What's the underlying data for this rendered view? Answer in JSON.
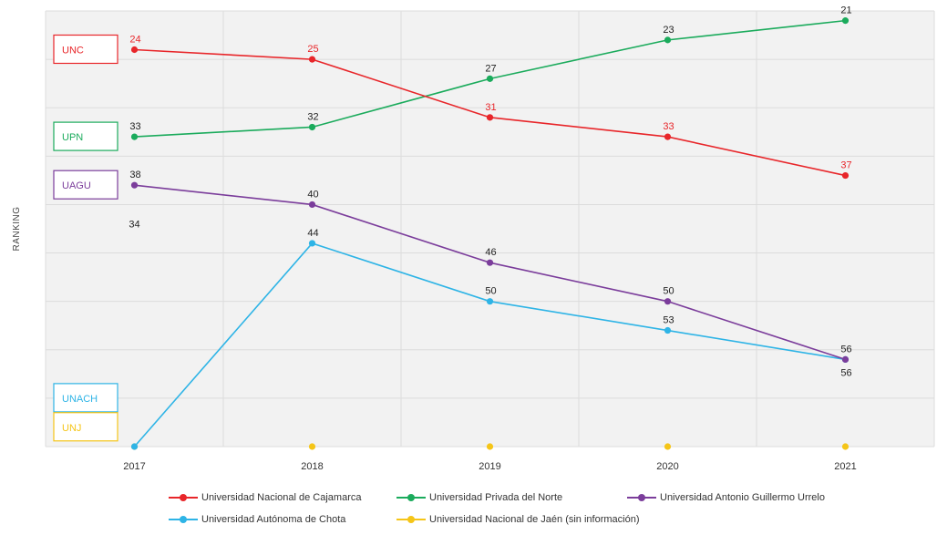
{
  "chart_data": {
    "type": "line",
    "ylabel": "RANKING",
    "categories": [
      "2017",
      "2018",
      "2019",
      "2020",
      "2021"
    ],
    "y_axis": {
      "reversed": true,
      "range": [
        20,
        65
      ],
      "tick_labels_shown": false
    },
    "grid": true,
    "legend_position": "bottom",
    "series": [
      {
        "name": "Universidad Nacional de Cajamarca",
        "short": "UNC",
        "color": "#e8262a",
        "values": [
          24,
          25,
          31,
          33,
          37
        ],
        "labels": [
          "24",
          "25",
          "31",
          "33",
          "37"
        ]
      },
      {
        "name": "Universidad Privada del Norte",
        "short": "UPN",
        "color": "#1bab5c",
        "values": [
          33,
          32,
          27,
          23,
          21
        ],
        "labels": [
          "33",
          "32",
          "27",
          "23",
          "21"
        ]
      },
      {
        "name": "Universidad Antonio Guillermo Urrelo",
        "short": "UAGU",
        "color": "#7b3d9b",
        "values": [
          38,
          40,
          46,
          50,
          56
        ],
        "labels": [
          "38",
          "40",
          "46",
          "50",
          "56"
        ]
      },
      {
        "name": "Universidad Autónoma de Chota",
        "short": "UNACH",
        "color": "#2eb4e6",
        "values": [
          65,
          44,
          50,
          53,
          56
        ],
        "labels": [
          "",
          "44",
          "50",
          "53",
          "56"
        ]
      },
      {
        "name": "Universidad Nacional de Jaén (sin información)",
        "short": "UNJ",
        "color": "#f5c518",
        "values": [
          65,
          65,
          65,
          65,
          65
        ],
        "labels": [
          "",
          "",
          "",
          "",
          ""
        ]
      }
    ],
    "annotations": [
      {
        "text": "34",
        "x": "2017",
        "y": 42
      }
    ],
    "label_boxes": [
      {
        "text": "UNC",
        "series": 0,
        "y": 24
      },
      {
        "text": "UPN",
        "series": 1,
        "y": 33
      },
      {
        "text": "UAGU",
        "series": 2,
        "y": 38
      },
      {
        "text": "UNACH",
        "series": 3,
        "y": 60
      },
      {
        "text": "UNJ",
        "series": 4,
        "y": 63
      }
    ]
  }
}
